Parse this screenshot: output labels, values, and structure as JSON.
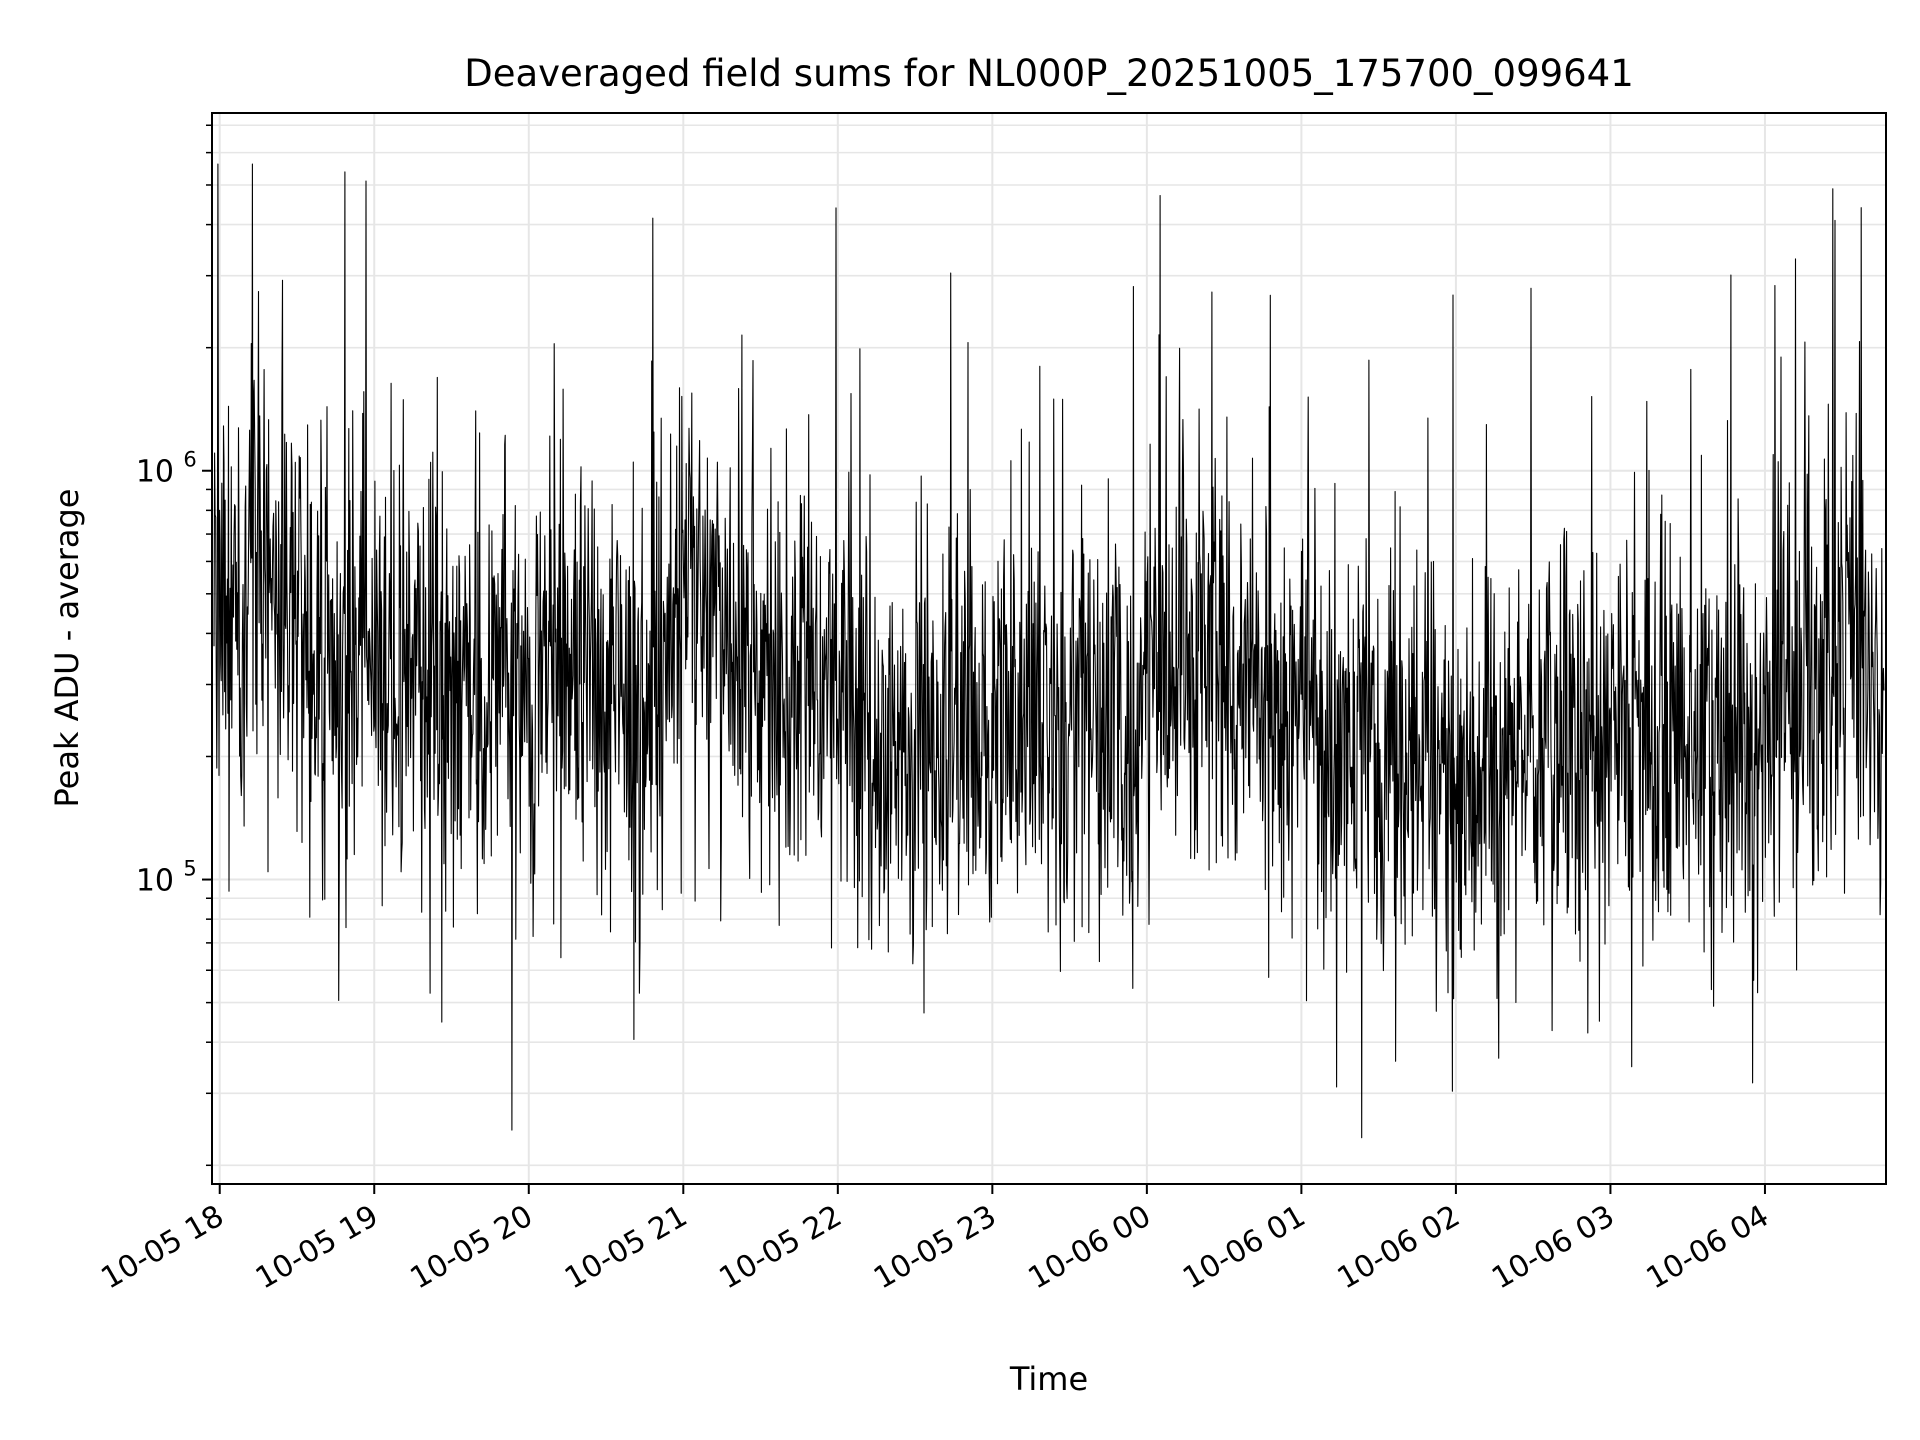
{
  "chart_data": {
    "type": "line",
    "title": "Deaveraged field sums for NL000P_20251005_175700_099641",
    "xlabel": "Time",
    "ylabel": "Peak ADU - average",
    "yscale": "log",
    "grid": true,
    "grid_minor": true,
    "line_color": "#000000",
    "grid_color": "#e6e6e6",
    "xlim": [
      "2025-10-05 17:57",
      "2025-10-06 04:47"
    ],
    "ylim": [
      18000,
      7500000
    ],
    "xticks": [
      {
        "t": "2025-10-05 18:00",
        "label": "10-05 18"
      },
      {
        "t": "2025-10-05 19:00",
        "label": "10-05 19"
      },
      {
        "t": "2025-10-05 20:00",
        "label": "10-05 20"
      },
      {
        "t": "2025-10-05 21:00",
        "label": "10-05 21"
      },
      {
        "t": "2025-10-05 22:00",
        "label": "10-05 22"
      },
      {
        "t": "2025-10-05 23:00",
        "label": "10-05 23"
      },
      {
        "t": "2025-10-06 00:00",
        "label": "10-06 00"
      },
      {
        "t": "2025-10-06 01:00",
        "label": "10-06 01"
      },
      {
        "t": "2025-10-06 02:00",
        "label": "10-06 02"
      },
      {
        "t": "2025-10-06 03:00",
        "label": "10-06 03"
      },
      {
        "t": "2025-10-06 04:00",
        "label": "10-06 04"
      }
    ],
    "yticks": [
      {
        "value": 100000,
        "base": "10",
        "exp": "5"
      },
      {
        "value": 1000000,
        "base": "10",
        "exp": "6"
      }
    ],
    "series": [
      {
        "x": [
          "2025-10-05 17:57",
          "2025-10-05 18:03",
          "2025-10-05 18:07",
          "2025-10-05 18:12",
          "2025-10-05 18:20",
          "2025-10-05 18:30",
          "2025-10-05 18:40",
          "2025-10-05 18:50",
          "2025-10-05 19:00",
          "2025-10-05 19:10",
          "2025-10-05 19:20",
          "2025-10-05 19:30",
          "2025-10-05 19:40",
          "2025-10-05 19:50",
          "2025-10-05 20:00",
          "2025-10-05 20:10",
          "2025-10-05 20:20",
          "2025-10-05 20:30",
          "2025-10-05 20:40",
          "2025-10-05 20:50",
          "2025-10-05 21:00",
          "2025-10-05 21:10",
          "2025-10-05 21:20",
          "2025-10-05 21:30",
          "2025-10-05 21:40",
          "2025-10-05 21:50",
          "2025-10-05 22:00",
          "2025-10-05 22:10",
          "2025-10-05 22:20",
          "2025-10-05 22:30",
          "2025-10-05 22:40",
          "2025-10-05 22:50",
          "2025-10-05 23:00",
          "2025-10-05 23:10",
          "2025-10-05 23:20",
          "2025-10-05 23:30",
          "2025-10-05 23:40",
          "2025-10-05 23:50",
          "2025-10-06 00:00",
          "2025-10-06 00:10",
          "2025-10-06 00:20",
          "2025-10-06 00:30",
          "2025-10-06 00:40",
          "2025-10-06 00:50",
          "2025-10-06 01:00",
          "2025-10-06 01:10",
          "2025-10-06 01:20",
          "2025-10-06 01:30",
          "2025-10-06 01:40",
          "2025-10-06 01:50",
          "2025-10-06 02:00",
          "2025-10-06 02:10",
          "2025-10-06 02:20",
          "2025-10-06 02:30",
          "2025-10-06 02:40",
          "2025-10-06 02:50",
          "2025-10-06 03:00",
          "2025-10-06 03:10",
          "2025-10-06 03:20",
          "2025-10-06 03:30",
          "2025-10-06 03:40",
          "2025-10-06 03:50",
          "2025-10-06 04:00",
          "2025-10-06 04:10",
          "2025-10-06 04:20",
          "2025-10-06 04:30",
          "2025-10-06 04:40",
          "2025-10-06 04:47"
        ],
        "y": [
          500000,
          450000,
          400000,
          600000,
          550000,
          450000,
          400000,
          350000,
          320000,
          300000,
          300000,
          280000,
          290000,
          280000,
          300000,
          310000,
          330000,
          310000,
          280000,
          260000,
          520000,
          400000,
          340000,
          300000,
          310000,
          330000,
          300000,
          220000,
          200000,
          210000,
          230000,
          240000,
          260000,
          250000,
          230000,
          230000,
          250000,
          260000,
          280000,
          300000,
          320000,
          330000,
          300000,
          260000,
          240000,
          210000,
          180000,
          170000,
          170000,
          175000,
          180000,
          190000,
          190000,
          200000,
          200000,
          210000,
          230000,
          240000,
          220000,
          210000,
          210000,
          220000,
          240000,
          300000,
          350000,
          380000,
          300000,
          290000
        ]
      }
    ]
  }
}
